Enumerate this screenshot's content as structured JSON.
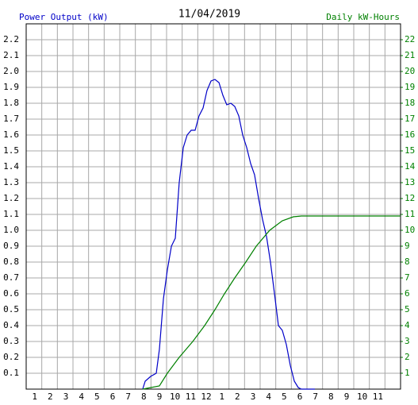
{
  "chart_data": {
    "type": "line",
    "title": "11/04/2019",
    "y_label": "Power Output (kW)",
    "y2_label": "Daily kW-Hours",
    "xlim": [
      0,
      24
    ],
    "xticks": [
      1,
      2,
      3,
      4,
      5,
      6,
      7,
      8,
      9,
      10,
      11,
      12,
      {
        "value": 13,
        "label": "1"
      },
      {
        "value": 14,
        "label": "2"
      },
      {
        "value": 15,
        "label": "3"
      },
      {
        "value": 16,
        "label": "4"
      },
      {
        "value": 17,
        "label": "5"
      },
      {
        "value": 18,
        "label": "6"
      },
      {
        "value": 19,
        "label": "7"
      },
      {
        "value": 20,
        "label": "8"
      },
      {
        "value": 21,
        "label": "9"
      },
      {
        "value": 22,
        "label": "10"
      },
      {
        "value": 23,
        "label": "11"
      }
    ],
    "ylim": [
      0,
      2.3
    ],
    "yticks": [
      0.1,
      0.2,
      0.3,
      0.4,
      0.5,
      0.6,
      0.7,
      0.8,
      0.9,
      {
        "value": 1,
        "label": "1.0"
      },
      1.1,
      1.2,
      1.3,
      1.4,
      1.5,
      1.6,
      1.7,
      1.8,
      1.9,
      {
        "value": 2,
        "label": "2.0"
      },
      2.1,
      2.2
    ],
    "y2lim": [
      0,
      23
    ],
    "y2ticks": [
      1,
      2,
      3,
      4,
      5,
      6,
      7,
      8,
      9,
      10,
      11,
      12,
      13,
      14,
      15,
      16,
      17,
      18,
      19,
      20,
      21,
      22
    ],
    "grid": true,
    "series": [
      {
        "name": "Power Output",
        "color": "#0000c8",
        "x": [
          7.47,
          7.63,
          7.98,
          8.34,
          8.54,
          8.8,
          9.05,
          9.31,
          9.56,
          9.81,
          10.07,
          10.32,
          10.58,
          10.83,
          11.08,
          11.34,
          11.59,
          11.85,
          12.1,
          12.36,
          12.61,
          12.86,
          13.12,
          13.37,
          13.63,
          13.88,
          14.14,
          14.39,
          14.64,
          14.9,
          15.15,
          15.41,
          15.66,
          15.92,
          16.17,
          16.42,
          16.68,
          16.93,
          17.19,
          17.44,
          17.64,
          18.51
        ],
        "values": [
          0,
          0.05,
          0.08,
          0.1,
          0.25,
          0.57,
          0.75,
          0.9,
          0.95,
          1.3,
          1.52,
          1.6,
          1.63,
          1.63,
          1.72,
          1.77,
          1.88,
          1.94,
          1.95,
          1.93,
          1.85,
          1.79,
          1.8,
          1.78,
          1.72,
          1.6,
          1.52,
          1.42,
          1.35,
          1.2,
          1.07,
          0.96,
          0.8,
          0.6,
          0.4,
          0.37,
          0.28,
          0.15,
          0.05,
          0.01,
          0,
          0
        ]
      },
      {
        "name": "Daily kW-Hours",
        "color": "#008000",
        "axis": "y2",
        "x": [
          7.47,
          8.54,
          9.05,
          9.81,
          10.68,
          11.44,
          12.1,
          12.71,
          13.37,
          14.08,
          14.75,
          15.61,
          16.42,
          17.13,
          17.64,
          24
        ],
        "values": [
          0,
          0.2,
          1,
          2,
          3,
          4,
          5,
          6,
          7,
          8,
          9,
          10,
          10.6,
          10.85,
          10.9,
          10.9
        ]
      }
    ]
  }
}
